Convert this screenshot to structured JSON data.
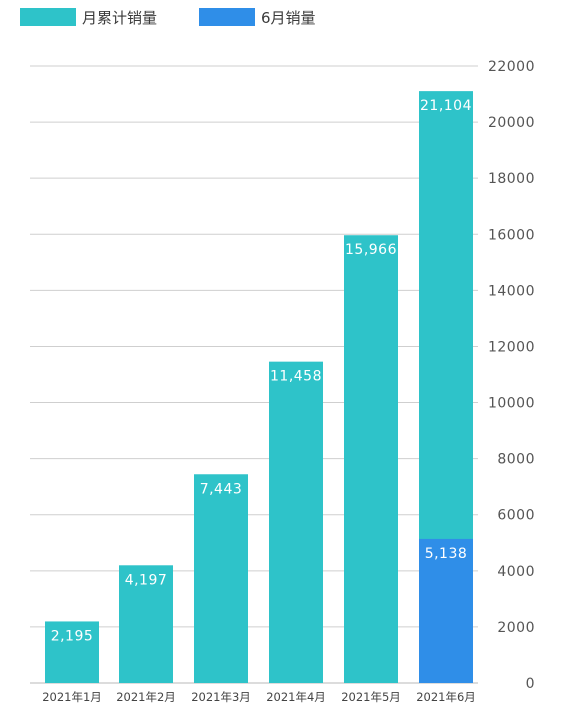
{
  "chart_data": {
    "type": "bar",
    "categories": [
      "2021年1月",
      "2021年2月",
      "2021年3月",
      "2021年4月",
      "2021年5月",
      "2021年6月"
    ],
    "series": [
      {
        "name": "月累计销量",
        "values": [
          2195,
          4197,
          7443,
          11458,
          15966,
          21104
        ],
        "labels": [
          "2,195",
          "4,197",
          "7,443",
          "11,458",
          "15,966",
          "21,104"
        ],
        "color": "#2ec3c9"
      },
      {
        "name": "6月销量",
        "values": [
          null,
          null,
          null,
          null,
          null,
          5138
        ],
        "labels": [
          "",
          "",
          "",
          "",
          "",
          "5,138"
        ],
        "color": "#2f8ee8"
      }
    ],
    "yticks": [
      "0",
      "2000",
      "4000",
      "6000",
      "8000",
      "10000",
      "12000",
      "14000",
      "16000",
      "18000",
      "20000",
      "22000"
    ],
    "ylim": [
      0,
      22000
    ],
    "grid": true,
    "y_axis_side": "right",
    "legend_position": "top-left",
    "overlay": "6月销量 drawn over the bottom of the 2021年6月 bar"
  }
}
